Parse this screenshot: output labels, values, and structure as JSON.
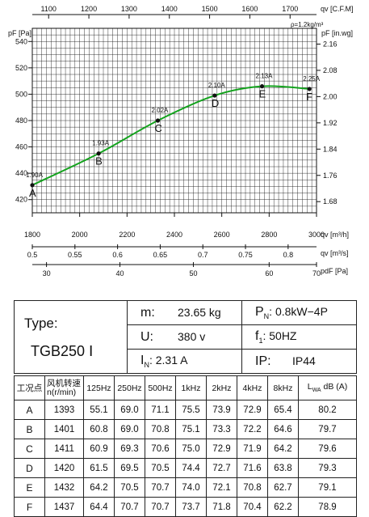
{
  "chart_data": {
    "type": "line",
    "axes": {
      "top": {
        "unit": "qv [C.F.M]",
        "ticks": [
          1100,
          1200,
          1300,
          1400,
          1500,
          1600,
          1700
        ],
        "range": [
          1059.4,
          1765.7
        ]
      },
      "bottom1": {
        "unit": "qv [m³/h]",
        "ticks": [
          1800,
          2000,
          2200,
          2400,
          2600,
          2800,
          3000
        ],
        "range": [
          1800,
          3000
        ]
      },
      "bottom2": {
        "unit": "qv [m³/s]",
        "ticks": [
          0.5,
          0.55,
          0.6,
          0.65,
          0.7,
          0.75,
          0.8
        ],
        "range": [
          0.5,
          0.8333
        ]
      },
      "bottom3": {
        "unit": "pdF [Pa]",
        "ticks": [
          30,
          40,
          50,
          60,
          70
        ]
      },
      "left": {
        "unit": "pF [Pa]",
        "ticks": [
          420,
          440,
          460,
          480,
          500,
          520,
          540
        ],
        "range": [
          410,
          550
        ]
      },
      "right": {
        "unit": "pF [in.wg]",
        "ticks": [
          "1.68",
          "1.76",
          "1.84",
          "1.92",
          "2.00",
          "2.08",
          "2.16"
        ],
        "values": [
          1.68,
          1.76,
          1.84,
          1.92,
          2.0,
          2.08,
          2.16
        ]
      }
    },
    "density_note": "ρ=1.2kg/m³",
    "series": [
      {
        "x": [
          1800,
          2080,
          2330,
          2570,
          2770,
          2970
        ],
        "y": [
          431,
          455,
          480,
          499,
          506,
          504
        ],
        "point_labels": [
          "A",
          "B",
          "C",
          "D",
          "E",
          "F"
        ],
        "current_labels": [
          "1.90A",
          "1.93A",
          "2.02A",
          "2.10A",
          "2.13A",
          "2.25A"
        ]
      }
    ],
    "bottom3_positions_m3h": [
      1860,
      2170,
      2480,
      2800,
      3000
    ],
    "grid": true,
    "colors": {
      "curve": "#14a31e",
      "grid": "#222222"
    }
  },
  "specs": {
    "type_label": "Type:",
    "model": "TGB250 Ⅰ",
    "mass_key": "m:",
    "mass_val": "23.65  kg",
    "pn_key": "P",
    "pn_sub": "N",
    "pn_val": ": 0.8kW−4P",
    "u_key": "U:",
    "u_val": "380  v",
    "f_key": "f",
    "f_sub": "1",
    "f_val": ":    50HZ",
    "in_key": "I",
    "in_sub": "N",
    "in_val": ":   2.31  A",
    "ip_key": "IP:",
    "ip_val": "IP44"
  },
  "noise_table": {
    "headers": [
      "工况点",
      "风机转速 n(r/min)",
      "125Hz",
      "250Hz",
      "500Hz",
      "1kHz",
      "2kHz",
      "4kHz",
      "8kHz",
      "L_WA dB (A)"
    ],
    "header_lwa_main": "L",
    "header_lwa_sub": "WA",
    "header_lwa_tail": "dB (A)",
    "header_speed_1": "风机转速",
    "header_speed_2": "n(r/min)",
    "rows": [
      [
        "A",
        "1393",
        "55.1",
        "69.0",
        "71.1",
        "75.5",
        "73.9",
        "72.9",
        "65.4",
        "80.2"
      ],
      [
        "B",
        "1401",
        "60.8",
        "69.0",
        "70.8",
        "75.1",
        "73.3",
        "72.2",
        "64.6",
        "79.7"
      ],
      [
        "C",
        "1411",
        "60.9",
        "69.3",
        "70.6",
        "75.0",
        "72.9",
        "71.9",
        "64.2",
        "79.6"
      ],
      [
        "D",
        "1420",
        "61.5",
        "69.5",
        "70.5",
        "74.4",
        "72.7",
        "71.6",
        "63.8",
        "79.3"
      ],
      [
        "E",
        "1432",
        "64.2",
        "70.5",
        "70.7",
        "74.0",
        "72.1",
        "70.8",
        "62.7",
        "79.1"
      ],
      [
        "F",
        "1437",
        "64.4",
        "70.7",
        "70.7",
        "73.7",
        "71.8",
        "70.4",
        "62.2",
        "78.9"
      ]
    ]
  }
}
